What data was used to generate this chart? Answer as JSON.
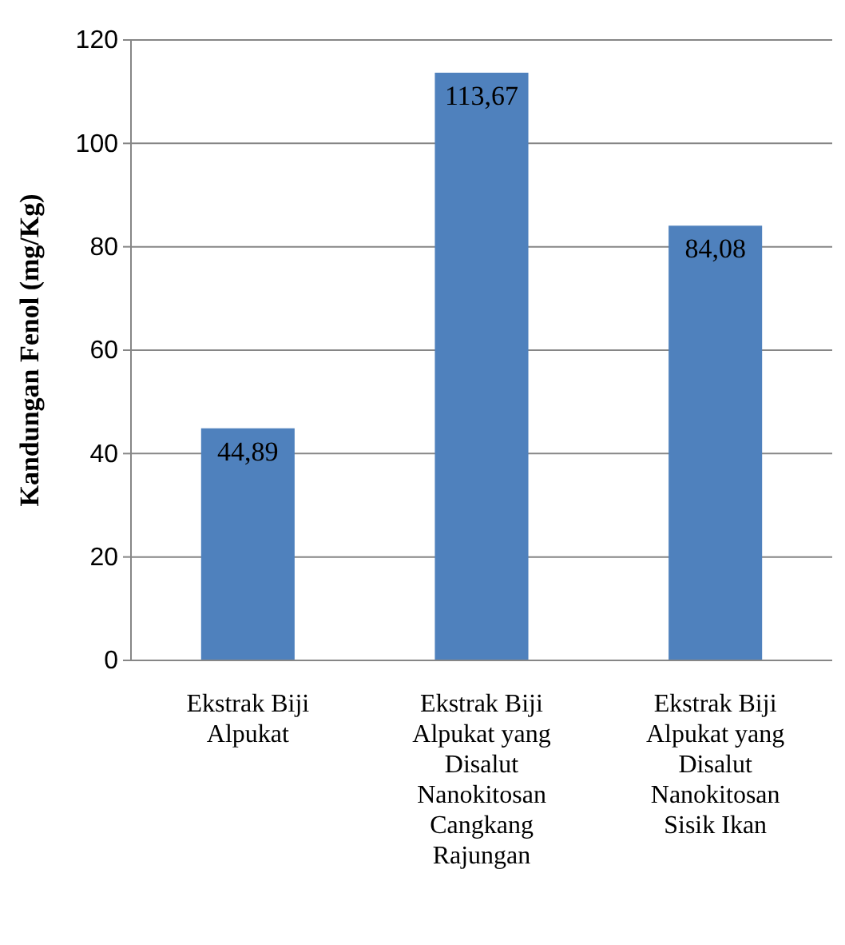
{
  "chart_data": {
    "type": "bar",
    "ylabel": "Kandungan Fenol (mg/Kg)",
    "categories": [
      "Ekstrak Biji Alpukat",
      "Ekstrak Biji Alpukat yang Disalut Nanokitosan Cangkang Rajungan",
      "Ekstrak Biji Alpukat yang Disalut Nanokitosan Sisik Ikan"
    ],
    "values": [
      44.89,
      113.67,
      84.08
    ],
    "value_labels": [
      "44,89",
      "113,67",
      "84,08"
    ],
    "color": "#4f81bd",
    "ylim": [
      0,
      120
    ],
    "yticks": [
      0,
      20,
      40,
      60,
      80,
      100,
      120
    ],
    "grid": "y"
  }
}
